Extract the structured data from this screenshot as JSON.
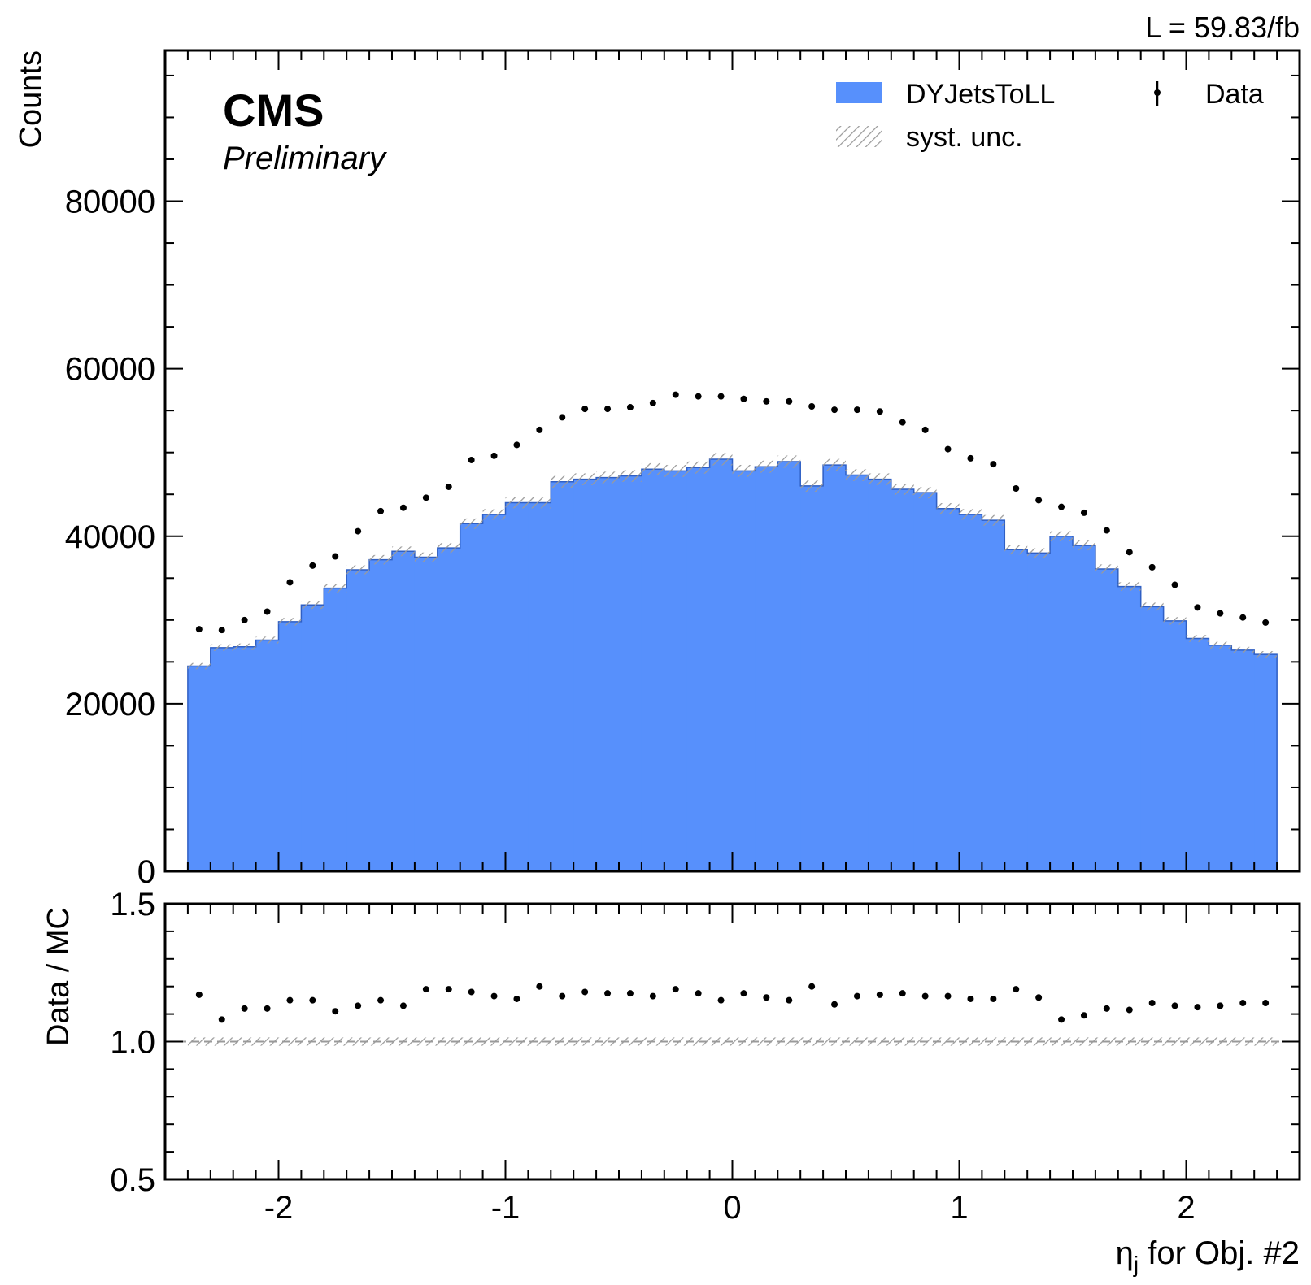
{
  "chart_data": {
    "type": "bar",
    "luminosity": "L = 59.83/fb",
    "experiment": "CMS",
    "status": "Preliminary",
    "colors": {
      "mc": "#5790fc",
      "data": "#000000",
      "hatch": "#9a9a9a"
    },
    "main": {
      "ylabel": "Counts",
      "ylim": [
        0,
        98000
      ],
      "yticks": [
        0,
        20000,
        40000,
        60000,
        80000
      ],
      "ytick_labels": [
        "0",
        "20000",
        "40000",
        "60000",
        "80000"
      ]
    },
    "ratio": {
      "ylabel": "Data / MC",
      "ylim": [
        0.5,
        1.5
      ],
      "yticks": [
        0.5,
        1.0,
        1.5
      ],
      "ytick_labels": [
        "0.5",
        "1.0",
        "1.5"
      ]
    },
    "xlabel": "η",
    "xlabel_sub": "j",
    "xlabel_rest": " for Obj. #2",
    "xlim": [
      -2.5,
      2.5
    ],
    "xticks": [
      -2,
      -1,
      0,
      1,
      2
    ],
    "xtick_labels": [
      "-2",
      "-1",
      "0",
      "1",
      "2"
    ],
    "bin_edges": [
      -2.4,
      -2.3,
      -2.2,
      -2.1,
      -2.0,
      -1.9,
      -1.8,
      -1.7,
      -1.6,
      -1.5,
      -1.4,
      -1.3,
      -1.2,
      -1.1,
      -1.0,
      -0.9,
      -0.8,
      -0.7,
      -0.6,
      -0.5,
      -0.4,
      -0.3,
      -0.2,
      -0.1,
      0.0,
      0.1,
      0.2,
      0.3,
      0.4,
      0.5,
      0.6,
      0.7,
      0.8,
      0.9,
      1.0,
      1.1,
      1.2,
      1.3,
      1.4,
      1.5,
      1.6,
      1.7,
      1.8,
      1.9,
      2.0,
      2.1,
      2.2,
      2.3,
      2.4
    ],
    "series": [
      {
        "name": "DYJetsToLL",
        "values": [
          24500,
          26700,
          26800,
          27600,
          29800,
          31800,
          33800,
          36000,
          37200,
          38200,
          37500,
          38600,
          41500,
          42600,
          44000,
          44000,
          46500,
          46800,
          47000,
          47200,
          48000,
          47800,
          48200,
          49200,
          47800,
          48300,
          48900,
          46000,
          48500,
          47300,
          46800,
          45600,
          45200,
          43300,
          42600,
          41900,
          38400,
          38000,
          40000,
          38900,
          36100,
          34000,
          31600,
          29900,
          27800,
          27000,
          26400,
          25900
        ]
      },
      {
        "name": "Data",
        "values": [
          28900,
          28800,
          30000,
          31000,
          34500,
          36500,
          37600,
          40600,
          43000,
          43400,
          44600,
          45900,
          49100,
          49600,
          50900,
          52700,
          54200,
          55200,
          55200,
          55400,
          55900,
          56900,
          56700,
          56700,
          56400,
          56100,
          56100,
          55500,
          55100,
          55100,
          54900,
          53600,
          52700,
          50400,
          49300,
          48600,
          45700,
          44300,
          43500,
          42800,
          40700,
          38100,
          36300,
          34200,
          31500,
          30800,
          30300,
          29700
        ]
      }
    ],
    "ratio_values": [
      1.17,
      1.08,
      1.12,
      1.12,
      1.15,
      1.15,
      1.11,
      1.13,
      1.15,
      1.13,
      1.19,
      1.19,
      1.18,
      1.165,
      1.155,
      1.2,
      1.165,
      1.18,
      1.175,
      1.175,
      1.165,
      1.19,
      1.175,
      1.15,
      1.175,
      1.16,
      1.15,
      1.2,
      1.135,
      1.165,
      1.17,
      1.175,
      1.165,
      1.165,
      1.155,
      1.155,
      1.19,
      1.16,
      1.08,
      1.095,
      1.12,
      1.115,
      1.14,
      1.13,
      1.125,
      1.13,
      1.14,
      1.14
    ],
    "syst_unc_rel": 0.015,
    "legend": {
      "position": "top-right",
      "mc_label": "DYJetsToLL",
      "data_label": "Data",
      "syst_label": "syst. unc."
    }
  }
}
